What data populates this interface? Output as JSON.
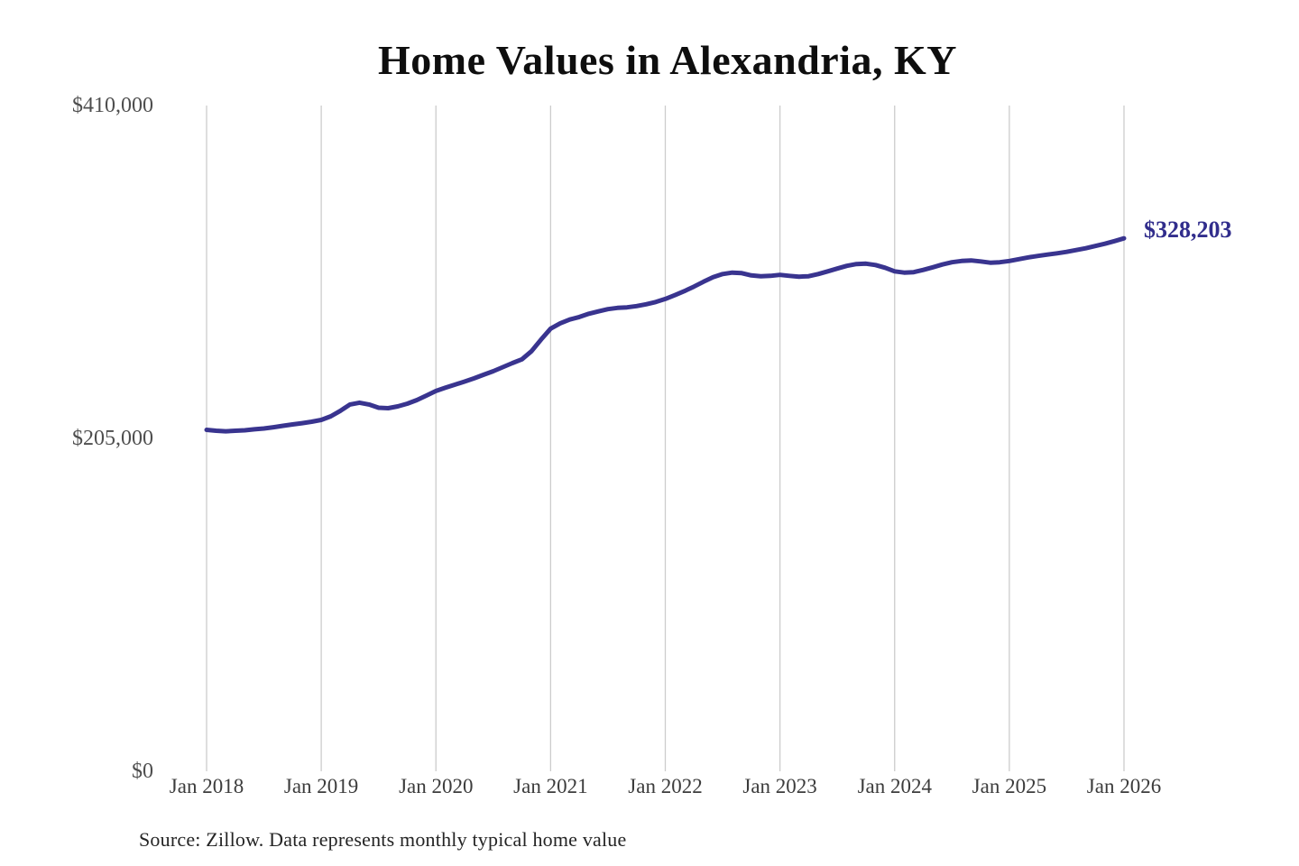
{
  "title": "Home Values in Alexandria, KY",
  "end_label": "$328,203",
  "source_note": "Source: Zillow. Data represents monthly typical home value",
  "colors": {
    "background": "#ffffff",
    "line": "#39348f",
    "end_label": "#312d8c",
    "gridline": "#cccccc",
    "title": "#0e0e0e",
    "y_tick_label": "#4e4e4e",
    "x_tick_label": "#3c3c3c",
    "source": "#242424"
  },
  "chart_data": {
    "type": "line",
    "title": "Home Values in Alexandria, KY",
    "xlabel": "",
    "ylabel": "",
    "ylim": [
      0,
      410000
    ],
    "grid": "vertical-only",
    "legend": "none",
    "unit": "USD",
    "x_tick_labels": [
      "Jan 2018",
      "Jan 2019",
      "Jan 2020",
      "Jan 2021",
      "Jan 2022",
      "Jan 2023",
      "Jan 2024",
      "Jan 2025",
      "Jan 2026"
    ],
    "y_ticks": [
      {
        "label": "$410,000",
        "value": 410000
      },
      {
        "label": "$205,000",
        "value": 205000
      },
      {
        "label": "$0",
        "value": 0
      }
    ],
    "series": [
      {
        "name": "Monthly typical home value",
        "x_start": "Jan 2018",
        "x_interval": "month",
        "values": [
          210300,
          209700,
          209400,
          209700,
          210000,
          210600,
          211100,
          211900,
          212800,
          213600,
          214400,
          215300,
          216400,
          218600,
          222000,
          225900,
          227000,
          225900,
          223900,
          223600,
          224700,
          226400,
          228600,
          231400,
          234200,
          236200,
          238100,
          240000,
          242000,
          244200,
          246400,
          248900,
          251400,
          253700,
          258700,
          265900,
          272600,
          275900,
          278200,
          279800,
          281800,
          283200,
          284600,
          285400,
          285700,
          286500,
          287600,
          289000,
          290900,
          293200,
          295700,
          298500,
          301500,
          304300,
          306200,
          307100,
          306800,
          305400,
          304900,
          305100,
          305700,
          305100,
          304600,
          304900,
          306200,
          307900,
          309600,
          311300,
          312400,
          312600,
          311800,
          310100,
          307900,
          307100,
          307400,
          308800,
          310400,
          312100,
          313500,
          314300,
          314600,
          314000,
          313200,
          313500,
          314300,
          315400,
          316500,
          317400,
          318200,
          319000,
          319900,
          321000,
          322100,
          323500,
          324900,
          326500,
          328203
        ]
      }
    ],
    "final_value": 328203
  }
}
